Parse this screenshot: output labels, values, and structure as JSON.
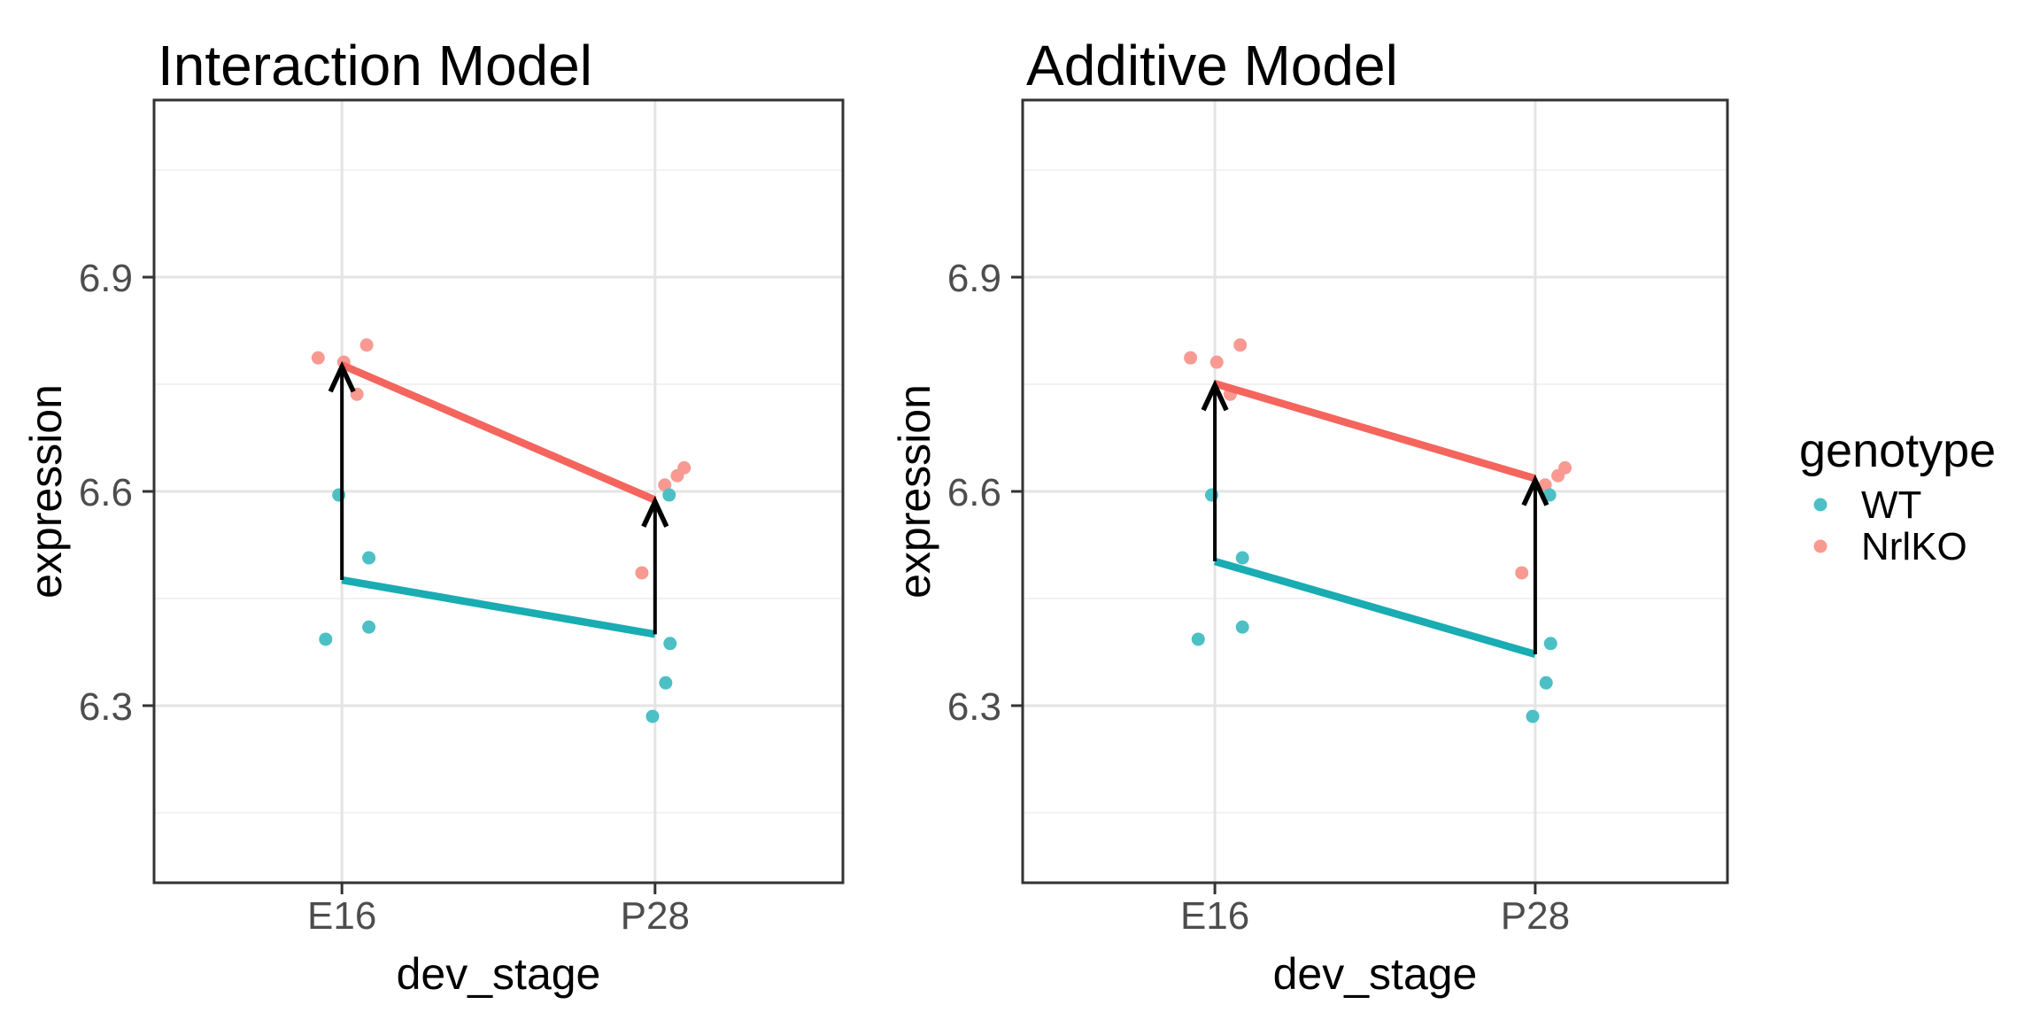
{
  "figure": {
    "background": "#FFFFFF",
    "legend": {
      "title": "genotype",
      "entries": [
        {
          "label": "WT",
          "series": "WT"
        },
        {
          "label": "NrlKO",
          "series": "NrlKO"
        }
      ]
    },
    "colors": {
      "WT": {
        "line": "#19ACB2",
        "point": "#4CC0C5"
      },
      "NrlKO": {
        "line": "#F4655E",
        "point": "#F89A92"
      },
      "arrow": "#000000",
      "panel_border": "#333333",
      "grid_major": "#E4E4E4",
      "grid_minor": "#F0F0F0",
      "tick": "#333333",
      "tick_label": "#4D4D4D",
      "title_text": "#000000"
    }
  },
  "chart_data": [
    {
      "type": "scatter",
      "title": "Interaction Model",
      "xlabel": "dev_stage",
      "ylabel": "expression",
      "categories": [
        "E16",
        "P28"
      ],
      "y_ticks": [
        6.9,
        6.6,
        6.3
      ],
      "y_tick_labels": [
        "6.9",
        "6.6",
        "6.3"
      ],
      "y_minor_ticks": [
        7.05,
        6.75,
        6.45,
        6.15
      ],
      "ylim": [
        6.052,
        7.148
      ],
      "grid": true,
      "legend_position": "none",
      "series": [
        {
          "name": "WT",
          "points": [
            {
              "x": 0,
              "jitter": -0.01,
              "y": 6.595
            },
            {
              "x": 0,
              "jitter": 0.086,
              "y": 6.507
            },
            {
              "x": 0,
              "jitter": 0.086,
              "y": 6.41
            },
            {
              "x": 0,
              "jitter": -0.052,
              "y": 6.393
            },
            {
              "x": 1,
              "jitter": 0.045,
              "y": 6.595
            },
            {
              "x": 1,
              "jitter": 0.048,
              "y": 6.387
            },
            {
              "x": 1,
              "jitter": 0.034,
              "y": 6.332
            },
            {
              "x": 1,
              "jitter": -0.008,
              "y": 6.285
            }
          ],
          "fit": [
            6.476,
            6.4
          ]
        },
        {
          "name": "NrlKO",
          "points": [
            {
              "x": 0,
              "jitter": -0.076,
              "y": 6.787
            },
            {
              "x": 0,
              "jitter": 0.079,
              "y": 6.805
            },
            {
              "x": 0,
              "jitter": 0.006,
              "y": 6.781
            },
            {
              "x": 0,
              "jitter": 0.048,
              "y": 6.736
            },
            {
              "x": 1,
              "jitter": 0.031,
              "y": 6.609
            },
            {
              "x": 1,
              "jitter": 0.071,
              "y": 6.622
            },
            {
              "x": 1,
              "jitter": 0.093,
              "y": 6.633
            },
            {
              "x": 1,
              "jitter": -0.042,
              "y": 6.486
            }
          ],
          "fit": [
            6.777,
            6.588
          ]
        }
      ],
      "arrows": [
        {
          "x": 0,
          "from": 6.476,
          "to": 6.777
        },
        {
          "x": 1,
          "from": 6.4,
          "to": 6.588
        }
      ]
    },
    {
      "type": "scatter",
      "title": "Additive Model",
      "xlabel": "dev_stage",
      "ylabel": "expression",
      "categories": [
        "E16",
        "P28"
      ],
      "y_ticks": [
        6.9,
        6.6,
        6.3
      ],
      "y_tick_labels": [
        "6.9",
        "6.6",
        "6.3"
      ],
      "y_minor_ticks": [
        7.05,
        6.75,
        6.45,
        6.15
      ],
      "ylim": [
        6.052,
        7.148
      ],
      "grid": true,
      "legend_position": "right",
      "series": [
        {
          "name": "WT",
          "points": [
            {
              "x": 0,
              "jitter": -0.01,
              "y": 6.595
            },
            {
              "x": 0,
              "jitter": 0.086,
              "y": 6.507
            },
            {
              "x": 0,
              "jitter": 0.086,
              "y": 6.41
            },
            {
              "x": 0,
              "jitter": -0.052,
              "y": 6.393
            },
            {
              "x": 1,
              "jitter": 0.045,
              "y": 6.595
            },
            {
              "x": 1,
              "jitter": 0.048,
              "y": 6.387
            },
            {
              "x": 1,
              "jitter": 0.034,
              "y": 6.332
            },
            {
              "x": 1,
              "jitter": -0.008,
              "y": 6.285
            }
          ],
          "fit": [
            6.502,
            6.372
          ]
        },
        {
          "name": "NrlKO",
          "points": [
            {
              "x": 0,
              "jitter": -0.076,
              "y": 6.787
            },
            {
              "x": 0,
              "jitter": 0.079,
              "y": 6.805
            },
            {
              "x": 0,
              "jitter": 0.006,
              "y": 6.781
            },
            {
              "x": 0,
              "jitter": 0.048,
              "y": 6.736
            },
            {
              "x": 1,
              "jitter": 0.031,
              "y": 6.609
            },
            {
              "x": 1,
              "jitter": 0.071,
              "y": 6.622
            },
            {
              "x": 1,
              "jitter": 0.093,
              "y": 6.633
            },
            {
              "x": 1,
              "jitter": -0.042,
              "y": 6.486
            }
          ],
          "fit": [
            6.751,
            6.618
          ]
        }
      ],
      "arrows": [
        {
          "x": 0,
          "from": 6.502,
          "to": 6.751
        },
        {
          "x": 1,
          "from": 6.372,
          "to": 6.618
        }
      ]
    }
  ]
}
